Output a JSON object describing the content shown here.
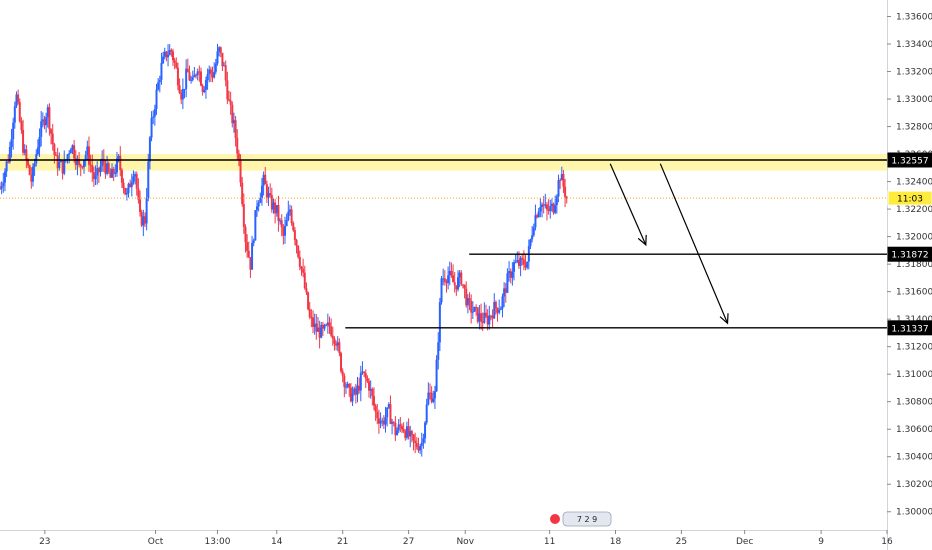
{
  "chart_data": {
    "type": "candlestick",
    "y_axis": {
      "range": [
        1.2994,
        1.3372
      ],
      "ticks": [
        "1.33600",
        "1.33400",
        "1.33200",
        "1.33000",
        "1.32800",
        "1.32600",
        "1.32400",
        "1.32200",
        "1.32000",
        "1.31800",
        "1.31600",
        "1.31400",
        "1.31200",
        "1.31000",
        "1.30800",
        "1.30600",
        "1.30400",
        "1.30200",
        "1.30000"
      ]
    },
    "x_axis": {
      "ticks": [
        {
          "label": "23",
          "x": 0.4
        },
        {
          "label": "Oct",
          "x": 8.8
        },
        {
          "label": "13:00",
          "x": 13.5
        },
        {
          "label": "14",
          "x": 18.0
        },
        {
          "label": "21",
          "x": 23.0
        },
        {
          "label": "27",
          "x": 28.0
        },
        {
          "label": "Nov",
          "x": 32.3
        },
        {
          "label": "11",
          "x": 38.7
        },
        {
          "label": "18",
          "x": 43.7
        },
        {
          "label": "25",
          "x": 48.7
        },
        {
          "label": "Dec",
          "x": 53.5
        },
        {
          "label": "9",
          "x": 59.3
        },
        {
          "label": "16",
          "x": 64.3
        }
      ],
      "x_range": [
        -3,
        64.3
      ]
    },
    "colors": {
      "up": "#2962ff",
      "down": "#f23645",
      "zone": "#fff59d",
      "line": "#000000"
    },
    "last_price_line": 1.3228,
    "tags": [
      {
        "label": "1.32557",
        "value": 1.32557,
        "bg": "#000000",
        "fg": "#ffffff"
      },
      {
        "label": "11:03",
        "value": 1.3228,
        "bg": "#ffeb3b",
        "fg": "#000000"
      },
      {
        "label": "1.31872",
        "value": 1.31872,
        "bg": "#000000",
        "fg": "#ffffff"
      },
      {
        "label": "1.31337",
        "value": 1.31337,
        "bg": "#000000",
        "fg": "#ffffff"
      }
    ],
    "resistance_zone": [
      1.3248,
      1.326
    ],
    "horizontal_lines": [
      {
        "value": 1.32557,
        "x_from": -3
      },
      {
        "value": 1.31872,
        "x_from": 32.6
      },
      {
        "value": 1.31337,
        "x_from": 23.2
      }
    ],
    "arrows": [
      {
        "from": [
          43.3,
          1.3253
        ],
        "to": [
          46.0,
          1.3194
        ]
      },
      {
        "from": [
          47.1,
          1.3253
        ],
        "to": [
          52.2,
          1.3137
        ]
      }
    ],
    "events_label": "7 2 9",
    "price_path": [
      [
        -3.0,
        1.3235
      ],
      [
        -2.3,
        1.326
      ],
      [
        -1.8,
        1.3305
      ],
      [
        -1.2,
        1.3262
      ],
      [
        -0.6,
        1.324
      ],
      [
        0.0,
        1.3275
      ],
      [
        0.6,
        1.3293
      ],
      [
        1.2,
        1.3255
      ],
      [
        1.8,
        1.325
      ],
      [
        2.4,
        1.3268
      ],
      [
        3.0,
        1.325
      ],
      [
        3.6,
        1.3262
      ],
      [
        4.2,
        1.324
      ],
      [
        4.8,
        1.3255
      ],
      [
        5.4,
        1.3242
      ],
      [
        6.0,
        1.3255
      ],
      [
        6.6,
        1.3228
      ],
      [
        7.2,
        1.3252
      ],
      [
        7.6,
        1.3213
      ],
      [
        8.0,
        1.3212
      ],
      [
        8.4,
        1.3275
      ],
      [
        8.8,
        1.33
      ],
      [
        9.2,
        1.3322
      ],
      [
        9.6,
        1.3333
      ],
      [
        10.0,
        1.3335
      ],
      [
        10.4,
        1.332
      ],
      [
        10.8,
        1.3302
      ],
      [
        11.2,
        1.332
      ],
      [
        11.6,
        1.331
      ],
      [
        12.0,
        1.3325
      ],
      [
        12.4,
        1.3308
      ],
      [
        12.8,
        1.332
      ],
      [
        13.2,
        1.3318
      ],
      [
        13.6,
        1.3336
      ],
      [
        14.0,
        1.3322
      ],
      [
        14.4,
        1.3295
      ],
      [
        14.8,
        1.3278
      ],
      [
        15.2,
        1.325
      ],
      [
        15.6,
        1.32
      ],
      [
        16.0,
        1.318
      ],
      [
        16.5,
        1.3225
      ],
      [
        17.0,
        1.324
      ],
      [
        17.5,
        1.3225
      ],
      [
        18.0,
        1.3218
      ],
      [
        18.5,
        1.32
      ],
      [
        19.0,
        1.322
      ],
      [
        19.5,
        1.3195
      ],
      [
        20.0,
        1.317
      ],
      [
        20.5,
        1.314
      ],
      [
        21.0,
        1.3132
      ],
      [
        21.5,
        1.313
      ],
      [
        22.0,
        1.3135
      ],
      [
        22.5,
        1.3125
      ],
      [
        23.0,
        1.31
      ],
      [
        23.5,
        1.3085
      ],
      [
        24.0,
        1.3085
      ],
      [
        24.5,
        1.31
      ],
      [
        25.0,
        1.3092
      ],
      [
        25.5,
        1.3072
      ],
      [
        26.0,
        1.3065
      ],
      [
        26.5,
        1.3073
      ],
      [
        27.0,
        1.3058
      ],
      [
        27.5,
        1.3063
      ],
      [
        28.0,
        1.3055
      ],
      [
        28.5,
        1.3048
      ],
      [
        29.0,
        1.305
      ],
      [
        29.5,
        1.3085
      ],
      [
        30.0,
        1.3085
      ],
      [
        30.5,
        1.317
      ],
      [
        31.0,
        1.3172
      ],
      [
        31.5,
        1.3165
      ],
      [
        32.0,
        1.317
      ],
      [
        32.5,
        1.315
      ],
      [
        33.0,
        1.3145
      ],
      [
        33.5,
        1.314
      ],
      [
        34.0,
        1.314
      ],
      [
        34.5,
        1.3148
      ],
      [
        35.0,
        1.315
      ],
      [
        35.5,
        1.3168
      ],
      [
        36.0,
        1.318
      ],
      [
        36.5,
        1.318
      ],
      [
        37.0,
        1.3182
      ],
      [
        37.5,
        1.3212
      ],
      [
        38.0,
        1.3225
      ],
      [
        38.5,
        1.3218
      ],
      [
        39.0,
        1.3222
      ],
      [
        39.5,
        1.3245
      ],
      [
        40.0,
        1.3228
      ]
    ]
  }
}
